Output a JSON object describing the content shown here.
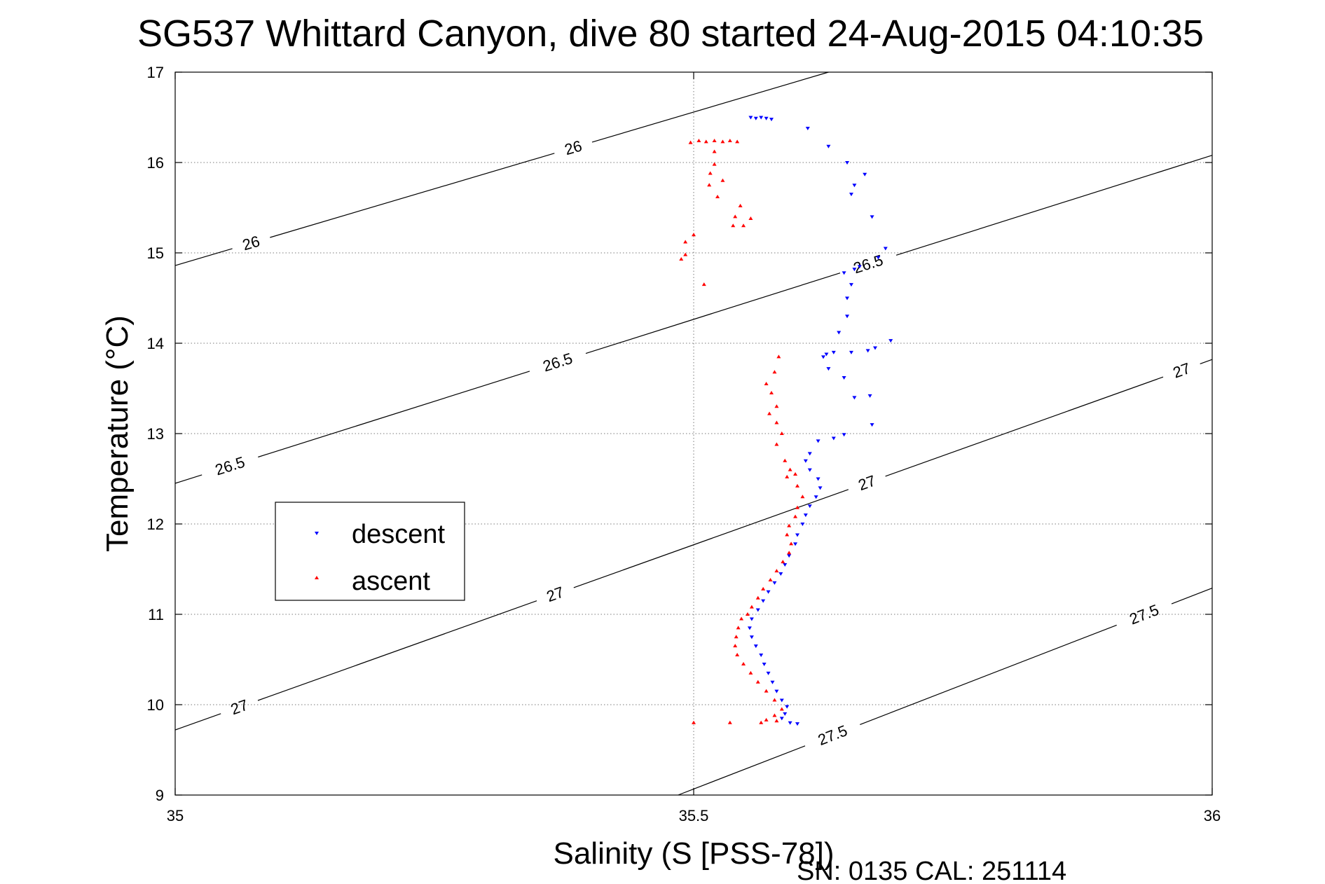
{
  "chart_data": {
    "type": "scatter",
    "title": "SG537 Whittard Canyon, dive 80 started 24-Aug-2015 04:10:35",
    "xlabel": "Salinity (S [PSS-78])",
    "ylabel": "Temperature (°C)",
    "xlim": [
      35,
      36
    ],
    "ylim": [
      9,
      17
    ],
    "xticks": [
      35,
      35.5,
      36
    ],
    "yticks": [
      9,
      10,
      11,
      12,
      13,
      14,
      15,
      16,
      17
    ],
    "grid": true,
    "legend_position": "middle-left",
    "footer": "SN: 0135  CAL: 251114",
    "isopycnals": [
      {
        "value": 26,
        "label": "26",
        "points": [
          [
            35.0,
            14.86
          ],
          [
            35.63,
            17.0
          ]
        ],
        "label_positions": [
          [
            35.074,
            15.08
          ],
          [
            35.385,
            16.12
          ]
        ]
      },
      {
        "value": 26.5,
        "label": "26.5",
        "points": [
          [
            35.0,
            12.45
          ],
          [
            36.0,
            16.08
          ]
        ],
        "label_positions": [
          [
            35.054,
            12.6
          ],
          [
            35.368,
            13.82
          ],
          [
            35.669,
            14.85
          ]
        ]
      },
      {
        "value": 27,
        "label": "27",
        "points": [
          [
            35.0,
            9.72
          ],
          [
            36.0,
            13.82
          ]
        ],
        "label_positions": [
          [
            35.062,
            9.97
          ],
          [
            35.365,
            11.27
          ],
          [
            35.665,
            12.52
          ],
          [
            35.968,
            13.78
          ]
        ]
      },
      {
        "value": 27.5,
        "label": "27.5",
        "points": [
          [
            35.485,
            9.0
          ],
          [
            36.0,
            11.29
          ]
        ],
        "label_positions": [
          [
            35.636,
            9.6
          ],
          [
            35.935,
            10.98
          ]
        ]
      }
    ],
    "series": [
      {
        "name": "descent",
        "color": "#0000ff",
        "marker": "triangle-down",
        "points": [
          [
            35.555,
            16.5
          ],
          [
            35.56,
            16.49
          ],
          [
            35.565,
            16.5
          ],
          [
            35.57,
            16.49
          ],
          [
            35.575,
            16.48
          ],
          [
            35.61,
            16.38
          ],
          [
            35.63,
            16.18
          ],
          [
            35.648,
            16.0
          ],
          [
            35.665,
            15.87
          ],
          [
            35.655,
            15.75
          ],
          [
            35.652,
            15.65
          ],
          [
            35.672,
            15.4
          ],
          [
            35.685,
            15.05
          ],
          [
            35.678,
            14.95
          ],
          [
            35.66,
            14.85
          ],
          [
            35.655,
            14.82
          ],
          [
            35.645,
            14.78
          ],
          [
            35.652,
            14.65
          ],
          [
            35.648,
            14.5
          ],
          [
            35.648,
            14.3
          ],
          [
            35.64,
            14.12
          ],
          [
            35.69,
            14.03
          ],
          [
            35.675,
            13.95
          ],
          [
            35.668,
            13.92
          ],
          [
            35.652,
            13.9
          ],
          [
            35.635,
            13.9
          ],
          [
            35.628,
            13.88
          ],
          [
            35.625,
            13.85
          ],
          [
            35.63,
            13.72
          ],
          [
            35.645,
            13.62
          ],
          [
            35.655,
            13.4
          ],
          [
            35.67,
            13.42
          ],
          [
            35.672,
            13.1
          ],
          [
            35.645,
            12.99
          ],
          [
            35.635,
            12.95
          ],
          [
            35.62,
            12.92
          ],
          [
            35.612,
            12.78
          ],
          [
            35.608,
            12.7
          ],
          [
            35.612,
            12.6
          ],
          [
            35.62,
            12.5
          ],
          [
            35.622,
            12.4
          ],
          [
            35.618,
            12.3
          ],
          [
            35.612,
            12.2
          ],
          [
            35.608,
            12.1
          ],
          [
            35.605,
            12.0
          ],
          [
            35.6,
            11.88
          ],
          [
            35.598,
            11.78
          ],
          [
            35.592,
            11.65
          ],
          [
            35.588,
            11.55
          ],
          [
            35.584,
            11.45
          ],
          [
            35.578,
            11.35
          ],
          [
            35.572,
            11.25
          ],
          [
            35.567,
            11.15
          ],
          [
            35.562,
            11.05
          ],
          [
            35.556,
            10.95
          ],
          [
            35.554,
            10.85
          ],
          [
            35.556,
            10.75
          ],
          [
            35.56,
            10.65
          ],
          [
            35.565,
            10.55
          ],
          [
            35.568,
            10.45
          ],
          [
            35.572,
            10.35
          ],
          [
            35.576,
            10.25
          ],
          [
            35.58,
            10.15
          ],
          [
            35.585,
            10.05
          ],
          [
            35.59,
            9.98
          ],
          [
            35.588,
            9.9
          ],
          [
            35.585,
            9.85
          ],
          [
            35.593,
            9.8
          ],
          [
            35.6,
            9.79
          ]
        ]
      },
      {
        "name": "ascent",
        "color": "#ff0000",
        "marker": "triangle-up",
        "points": [
          [
            35.497,
            16.22
          ],
          [
            35.505,
            16.24
          ],
          [
            35.512,
            16.23
          ],
          [
            35.52,
            16.24
          ],
          [
            35.528,
            16.23
          ],
          [
            35.535,
            16.24
          ],
          [
            35.542,
            16.23
          ],
          [
            35.52,
            16.12
          ],
          [
            35.52,
            15.98
          ],
          [
            35.516,
            15.88
          ],
          [
            35.515,
            15.75
          ],
          [
            35.528,
            15.8
          ],
          [
            35.523,
            15.62
          ],
          [
            35.545,
            15.52
          ],
          [
            35.54,
            15.4
          ],
          [
            35.555,
            15.38
          ],
          [
            35.538,
            15.3
          ],
          [
            35.548,
            15.3
          ],
          [
            35.5,
            15.2
          ],
          [
            35.492,
            15.12
          ],
          [
            35.492,
            14.98
          ],
          [
            35.488,
            14.93
          ],
          [
            35.51,
            14.65
          ],
          [
            35.582,
            13.85
          ],
          [
            35.578,
            13.68
          ],
          [
            35.57,
            13.55
          ],
          [
            35.575,
            13.45
          ],
          [
            35.58,
            13.3
          ],
          [
            35.573,
            13.22
          ],
          [
            35.58,
            13.12
          ],
          [
            35.585,
            13.0
          ],
          [
            35.58,
            12.88
          ],
          [
            35.588,
            12.7
          ],
          [
            35.593,
            12.6
          ],
          [
            35.598,
            12.55
          ],
          [
            35.59,
            12.52
          ],
          [
            35.6,
            12.42
          ],
          [
            35.605,
            12.3
          ],
          [
            35.6,
            12.18
          ],
          [
            35.598,
            12.08
          ],
          [
            35.592,
            11.98
          ],
          [
            35.59,
            11.88
          ],
          [
            35.594,
            11.78
          ],
          [
            35.592,
            11.68
          ],
          [
            35.586,
            11.58
          ],
          [
            35.58,
            11.48
          ],
          [
            35.574,
            11.38
          ],
          [
            35.567,
            11.28
          ],
          [
            35.562,
            11.18
          ],
          [
            35.556,
            11.08
          ],
          [
            35.552,
            11.0
          ],
          [
            35.546,
            10.95
          ],
          [
            35.543,
            10.85
          ],
          [
            35.541,
            10.75
          ],
          [
            35.54,
            10.65
          ],
          [
            35.542,
            10.55
          ],
          [
            35.548,
            10.45
          ],
          [
            35.555,
            10.35
          ],
          [
            35.562,
            10.25
          ],
          [
            35.57,
            10.15
          ],
          [
            35.578,
            10.05
          ],
          [
            35.585,
            9.95
          ],
          [
            35.578,
            9.88
          ],
          [
            35.57,
            9.83
          ],
          [
            35.565,
            9.8
          ],
          [
            35.535,
            9.8
          ],
          [
            35.5,
            9.8
          ],
          [
            35.58,
            9.82
          ]
        ]
      }
    ]
  }
}
